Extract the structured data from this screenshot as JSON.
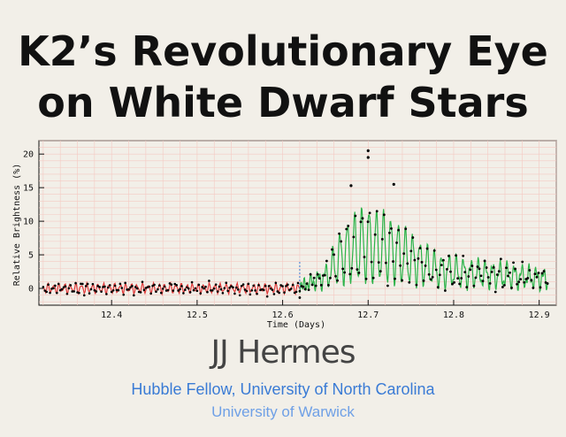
{
  "slide": {
    "title_line1": "K2’s Revolutionary Eye",
    "title_line2": "on White Dwarf Stars",
    "author": "JJ Hermes",
    "affiliation1": "Hubble Fellow, University of North Carolina",
    "affiliation2": "University of Warwick"
  },
  "colors": {
    "background": "#f2efe8",
    "grid": "#f4c9c2",
    "quiet_model": "#e03a3a",
    "outburst_model": "#2db34a",
    "points": "#000000",
    "transition": "#3a7bd5",
    "affiliation1": "#3a7bd5",
    "affiliation2": "#6fa0e6"
  },
  "chart_data": {
    "type": "scatter",
    "xlabel": "Time (Days)",
    "ylabel": "Relative Brightness (%)",
    "xlim": [
      12.315,
      12.92
    ],
    "ylim": [
      -2.5,
      22
    ],
    "xticks": [
      12.4,
      12.5,
      12.6,
      12.7,
      12.8,
      12.9
    ],
    "yticks": [
      0,
      5,
      10,
      15,
      20
    ],
    "grid": true,
    "legend": "none",
    "series": [
      {
        "model": "quiescent pulsations",
        "color": "#e03a3a",
        "x_range": [
          12.32,
          12.62
        ],
        "baseline": 0.0,
        "amplitude": 0.6
      },
      {
        "model": "outburst",
        "color": "#2db34a",
        "x_range": [
          12.62,
          12.91
        ],
        "envelope": [
          {
            "x": 12.62,
            "y": 0.5
          },
          {
            "x": 12.65,
            "y": 3
          },
          {
            "x": 12.67,
            "y": 9
          },
          {
            "x": 12.695,
            "y": 12
          },
          {
            "x": 12.72,
            "y": 11
          },
          {
            "x": 12.75,
            "y": 8
          },
          {
            "x": 12.78,
            "y": 5
          },
          {
            "x": 12.82,
            "y": 4
          },
          {
            "x": 12.86,
            "y": 3.5
          },
          {
            "x": 12.91,
            "y": 2.5
          }
        ]
      }
    ],
    "highlight_points": [
      {
        "x": 12.7,
        "y": 20.5
      },
      {
        "x": 12.7,
        "y": 19.5
      },
      {
        "x": 12.73,
        "y": 15.5
      },
      {
        "x": 12.68,
        "y": 15.3
      }
    ]
  }
}
